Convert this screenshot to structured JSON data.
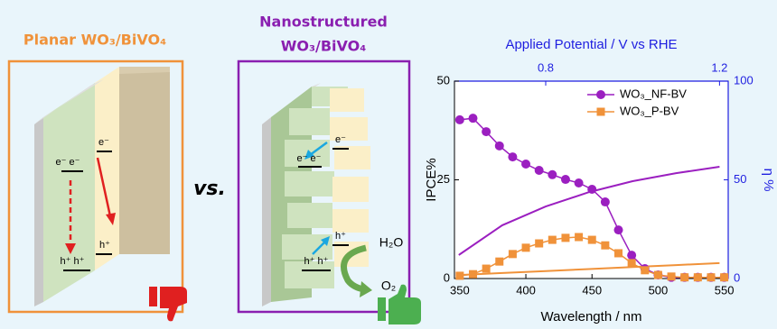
{
  "left_panel": {
    "title": "Planar WO₃/BiVO₄",
    "labels": [
      "e⁻",
      "e⁻ e⁻",
      "h⁺",
      "h⁺ h⁺"
    ]
  },
  "versus": "vs.",
  "right_panel": {
    "title": [
      "Nanostructured",
      "WO₃/BiVO₄"
    ],
    "labels": [
      "e⁻",
      "e⁻ e⁻",
      "h⁺",
      "h⁺ h⁺",
      "H₂O",
      "O₂"
    ]
  },
  "chart_data": {
    "type": "line",
    "x_label": "Wavelength / nm",
    "y_label": "IPCE%",
    "y2_label": "η %",
    "x2_label": "Applied Potential / V vs RHE",
    "x": [
      350,
      360,
      370,
      380,
      390,
      400,
      410,
      420,
      430,
      440,
      450,
      460,
      470,
      480,
      490,
      500,
      510,
      520,
      530,
      540,
      550
    ],
    "series": [
      {
        "name": "WO₃_NF-BV",
        "color": "#9b1fc0",
        "marker": "circle",
        "values": [
          40.2,
          40.6,
          37.2,
          33.6,
          30.8,
          29.0,
          27.4,
          26.3,
          25.1,
          24.2,
          22.6,
          19.4,
          12.3,
          5.9,
          2.5,
          0.9,
          0.3,
          0.3,
          0.3,
          0.3,
          0.3
        ]
      },
      {
        "name": "WO₃_P-BV",
        "color": "#f0923a",
        "marker": "square",
        "values": [
          0.7,
          1.1,
          2.5,
          4.3,
          6.2,
          7.8,
          8.9,
          9.8,
          10.3,
          10.5,
          9.8,
          8.4,
          6.4,
          3.9,
          2.1,
          0.9,
          0.5,
          0.3,
          0.3,
          0.3,
          0.3
        ]
      }
    ],
    "eta_curves": [
      {
        "color": "#9b1fc0",
        "axis": "y2",
        "x": [
          0.6,
          0.7,
          0.8,
          0.9,
          1.0,
          1.1,
          1.2
        ],
        "values": [
          11.9,
          27,
          36.5,
          43.8,
          49.3,
          53.4,
          56.6
        ]
      },
      {
        "color": "#f0923a",
        "axis": "y2",
        "x": [
          0.6,
          0.7,
          0.8,
          0.9,
          1.0,
          1.1,
          1.2
        ],
        "values": [
          1.8,
          2.8,
          3.8,
          4.8,
          5.8,
          6.8,
          7.8
        ]
      }
    ],
    "xlim": [
      346,
      553
    ],
    "xticks": [
      350,
      400,
      450,
      500,
      550
    ],
    "x2lim": [
      0.59,
      1.22
    ],
    "x2ticks": [
      0.8,
      1.2
    ],
    "ylim": [
      0,
      50
    ],
    "yticks": [
      0,
      25,
      50
    ],
    "y2lim": [
      0,
      100
    ],
    "y2ticks": [
      0,
      50,
      100
    ],
    "legend": "upper right",
    "axis2_color": "#1f1fe0"
  }
}
